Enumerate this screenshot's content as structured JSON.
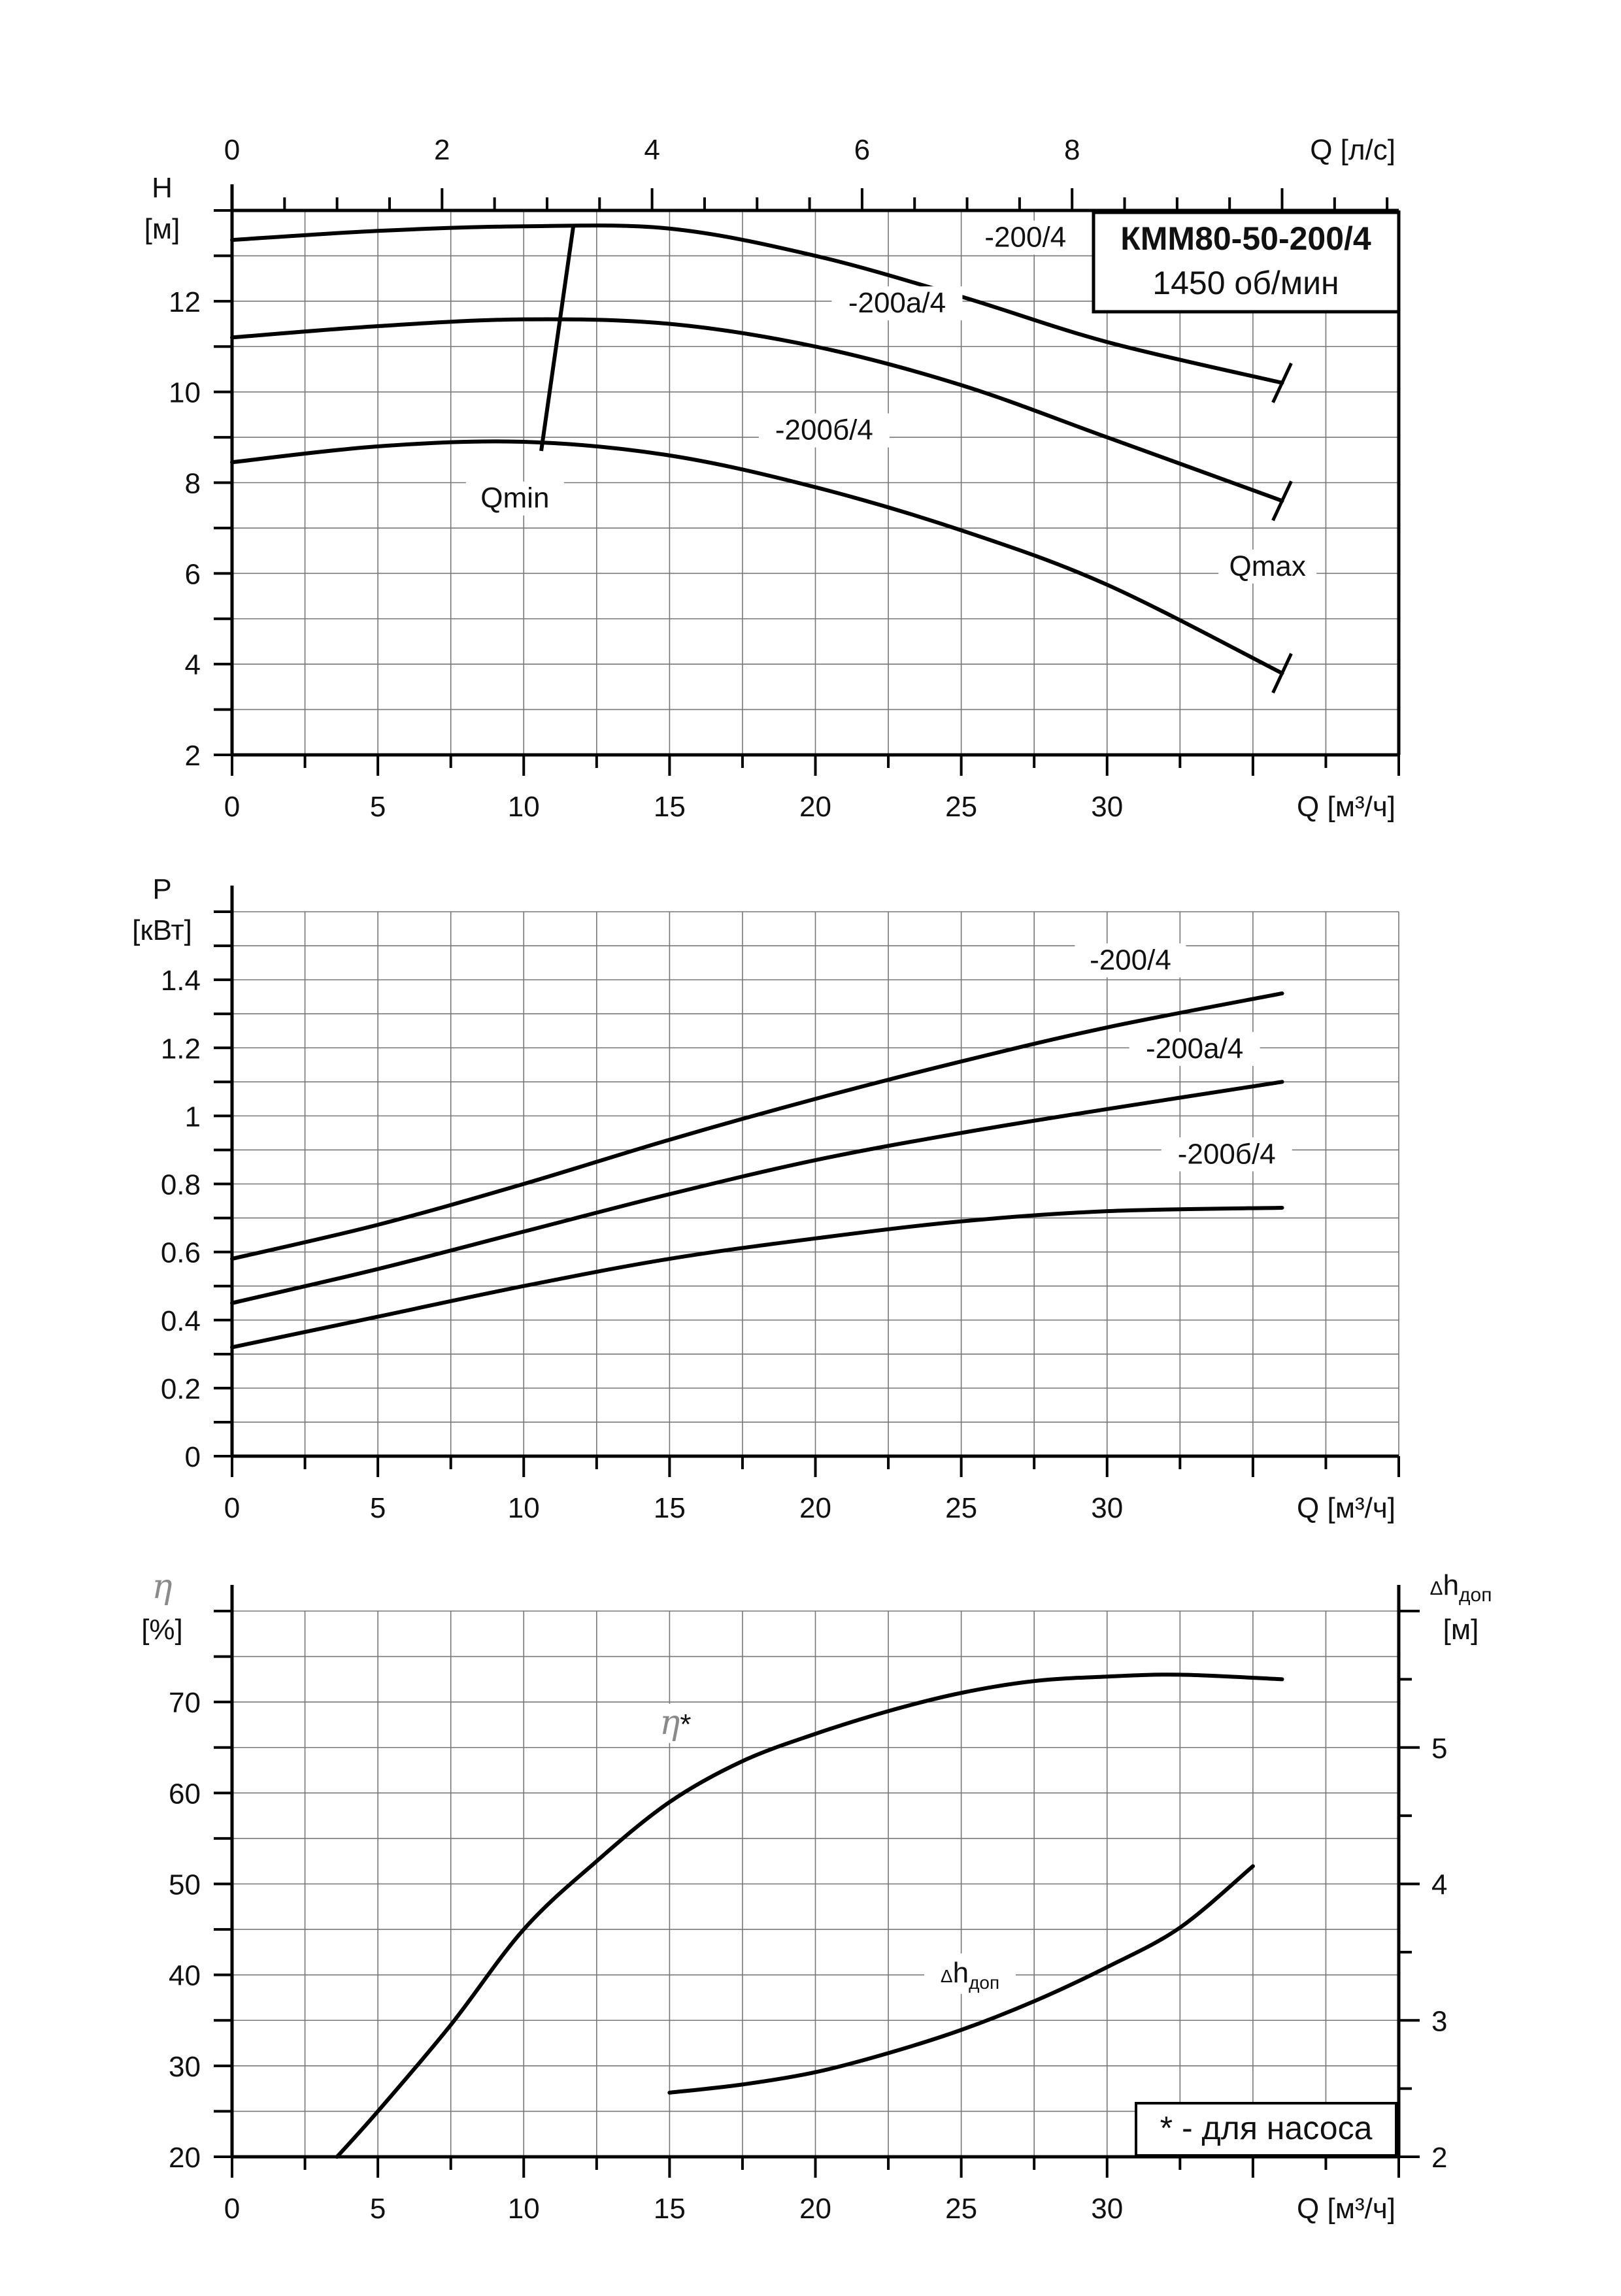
{
  "chart_data": [
    {
      "type": "line",
      "id": "head",
      "title": "КММ80-50-200/4",
      "subtitle": "1450 об/мин",
      "ylabel_symbol": "H",
      "ylabel_unit": "[м]",
      "xlabel": "Q [м³/ч]",
      "x2label": "Q [л/с]",
      "xlim": [
        0,
        40
      ],
      "ylim": [
        2,
        14
      ],
      "x_ticks": [
        0,
        5,
        10,
        15,
        20,
        25,
        30
      ],
      "y_ticks": [
        2,
        4,
        6,
        8,
        10,
        12
      ],
      "x2_ticks": [
        0,
        2,
        4,
        6,
        8
      ],
      "grid": true,
      "series": [
        {
          "name": "-200/4",
          "x": [
            0,
            5,
            10,
            15,
            20,
            25,
            30,
            36
          ],
          "y": [
            13.35,
            13.55,
            13.65,
            13.6,
            13.0,
            12.1,
            11.1,
            10.2
          ]
        },
        {
          "name": "-200а/4",
          "x": [
            0,
            5,
            10,
            15,
            20,
            25,
            30,
            36
          ],
          "y": [
            11.2,
            11.45,
            11.6,
            11.5,
            11.0,
            10.15,
            9.0,
            7.6
          ]
        },
        {
          "name": "-200б/4",
          "x": [
            0,
            5,
            10,
            15,
            20,
            25,
            30,
            36
          ],
          "y": [
            8.45,
            8.8,
            8.9,
            8.6,
            7.9,
            6.95,
            5.75,
            3.8
          ]
        }
      ],
      "qmin_label": "Qmin",
      "qmin_line": {
        "x": [
          10.6,
          11.7
        ],
        "y": [
          8.7,
          13.65
        ]
      },
      "qmax_label": "Qmax"
    },
    {
      "type": "line",
      "id": "power",
      "ylabel_symbol": "P",
      "ylabel_unit": "[кВт]",
      "xlabel": "Q [м³/ч]",
      "xlim": [
        0,
        40
      ],
      "ylim": [
        0,
        1.6
      ],
      "x_ticks": [
        0,
        5,
        10,
        15,
        20,
        25,
        30
      ],
      "y_ticks": [
        "0",
        "0.2",
        "0.4",
        "0.6",
        "0.8",
        "1",
        "1.2",
        "1.4"
      ],
      "grid": true,
      "series": [
        {
          "name": "-200/4",
          "x": [
            0,
            5,
            10,
            15,
            20,
            25,
            30,
            36
          ],
          "y": [
            0.58,
            0.68,
            0.8,
            0.93,
            1.05,
            1.16,
            1.26,
            1.36
          ]
        },
        {
          "name": "-200а/4",
          "x": [
            0,
            5,
            10,
            15,
            20,
            25,
            30,
            36
          ],
          "y": [
            0.45,
            0.55,
            0.66,
            0.77,
            0.87,
            0.95,
            1.02,
            1.1
          ]
        },
        {
          "name": "-200б/4",
          "x": [
            0,
            5,
            10,
            15,
            20,
            25,
            30,
            36
          ],
          "y": [
            0.32,
            0.41,
            0.5,
            0.58,
            0.64,
            0.69,
            0.72,
            0.73
          ]
        }
      ]
    },
    {
      "type": "line",
      "id": "efficiency-npsh",
      "ylabel_symbol": "η",
      "ylabel_unit": "[%]",
      "y2label_symbol": "Δh",
      "y2label_sub": "доп",
      "y2label_unit": "[м]",
      "xlabel": "Q [м³/ч]",
      "xlim": [
        0,
        40
      ],
      "ylim": [
        20,
        80
      ],
      "y2lim": [
        2,
        6
      ],
      "x_ticks": [
        0,
        5,
        10,
        15,
        20,
        25,
        30
      ],
      "y_ticks": [
        20,
        30,
        40,
        50,
        60,
        70
      ],
      "y2_ticks": [
        2,
        3,
        4,
        5
      ],
      "grid": true,
      "series": [
        {
          "name": "η*",
          "axis": "left",
          "x": [
            3.6,
            5,
            7.5,
            10,
            12.5,
            15,
            17.5,
            20,
            22.5,
            25,
            27.5,
            30,
            32.5,
            36
          ],
          "y": [
            20,
            25,
            34.5,
            45,
            52.5,
            59,
            63.5,
            66.5,
            69,
            71,
            72.3,
            72.8,
            73,
            72.5
          ]
        },
        {
          "name": "Δhдоп",
          "axis": "right",
          "x": [
            15,
            17.5,
            20,
            22.5,
            25,
            27.5,
            30,
            32.5,
            35
          ],
          "y": [
            2.47,
            2.53,
            2.62,
            2.76,
            2.93,
            3.14,
            3.39,
            3.68,
            4.13
          ]
        }
      ],
      "eta_label_symbol": "η",
      "eta_label_star": "*",
      "npsh_label_main": "h",
      "npsh_label_sub": "доп",
      "note": "* - для насоса"
    }
  ]
}
